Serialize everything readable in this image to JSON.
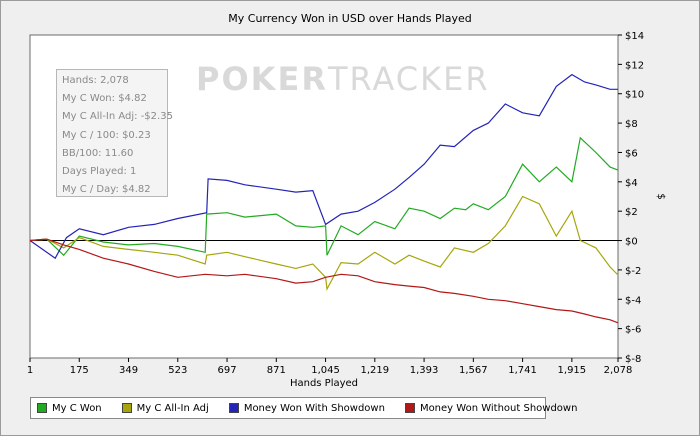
{
  "chart_data": {
    "type": "line",
    "title": "My Currency Won in USD over Hands Played",
    "xlabel": "Hands Played",
    "ylabel": "$",
    "x_ticks": [
      "1",
      "175",
      "349",
      "523",
      "697",
      "871",
      "1,045",
      "1,219",
      "1,393",
      "1,567",
      "1,741",
      "1,915",
      "2,078"
    ],
    "y_ticks": [
      "$14",
      "$12",
      "$10",
      "$8",
      "$6",
      "$4",
      "$2",
      "$0",
      "$-2",
      "$-4",
      "$-6",
      "$-8"
    ],
    "xlim": [
      1,
      2078
    ],
    "ylim": [
      -8,
      14
    ],
    "grid": false,
    "legend_position": "bottom",
    "series": [
      {
        "name": "My C Won",
        "color": "#22aa22",
        "points": [
          [
            1,
            0
          ],
          [
            60,
            0.1
          ],
          [
            120,
            -1
          ],
          [
            175,
            0.3
          ],
          [
            260,
            -0.1
          ],
          [
            349,
            -0.3
          ],
          [
            440,
            -0.2
          ],
          [
            523,
            -0.4
          ],
          [
            620,
            -0.8
          ],
          [
            625,
            1.8
          ],
          [
            697,
            1.9
          ],
          [
            760,
            1.6
          ],
          [
            871,
            1.8
          ],
          [
            940,
            1.0
          ],
          [
            1000,
            0.9
          ],
          [
            1045,
            1.0
          ],
          [
            1050,
            -1.0
          ],
          [
            1100,
            1.0
          ],
          [
            1160,
            0.4
          ],
          [
            1219,
            1.3
          ],
          [
            1290,
            0.8
          ],
          [
            1340,
            2.2
          ],
          [
            1393,
            2.0
          ],
          [
            1450,
            1.5
          ],
          [
            1500,
            2.2
          ],
          [
            1540,
            2.1
          ],
          [
            1567,
            2.5
          ],
          [
            1620,
            2.1
          ],
          [
            1680,
            3.0
          ],
          [
            1741,
            5.2
          ],
          [
            1800,
            4.0
          ],
          [
            1860,
            5.0
          ],
          [
            1915,
            4.0
          ],
          [
            1945,
            7.0
          ],
          [
            2000,
            6.0
          ],
          [
            2050,
            5.0
          ],
          [
            2078,
            4.8
          ]
        ]
      },
      {
        "name": "My C All-In Adj",
        "color": "#a6a60c",
        "points": [
          [
            1,
            0
          ],
          [
            60,
            0.1
          ],
          [
            120,
            -0.5
          ],
          [
            175,
            0.2
          ],
          [
            260,
            -0.4
          ],
          [
            349,
            -0.6
          ],
          [
            440,
            -0.8
          ],
          [
            523,
            -1.0
          ],
          [
            620,
            -1.6
          ],
          [
            625,
            -1.0
          ],
          [
            697,
            -0.8
          ],
          [
            760,
            -1.1
          ],
          [
            871,
            -1.6
          ],
          [
            940,
            -1.9
          ],
          [
            1000,
            -1.6
          ],
          [
            1045,
            -2.5
          ],
          [
            1050,
            -3.3
          ],
          [
            1100,
            -1.5
          ],
          [
            1160,
            -1.6
          ],
          [
            1219,
            -0.8
          ],
          [
            1290,
            -1.6
          ],
          [
            1340,
            -1.0
          ],
          [
            1393,
            -1.4
          ],
          [
            1450,
            -1.8
          ],
          [
            1500,
            -0.5
          ],
          [
            1567,
            -0.8
          ],
          [
            1620,
            -0.2
          ],
          [
            1680,
            1.0
          ],
          [
            1741,
            3.0
          ],
          [
            1800,
            2.5
          ],
          [
            1860,
            0.3
          ],
          [
            1915,
            2.0
          ],
          [
            1945,
            0.0
          ],
          [
            2000,
            -0.5
          ],
          [
            2050,
            -1.8
          ],
          [
            2078,
            -2.35
          ]
        ]
      },
      {
        "name": "Money Won With Showdown",
        "color": "#2424b8",
        "points": [
          [
            1,
            0
          ],
          [
            90,
            -1.2
          ],
          [
            130,
            0.2
          ],
          [
            175,
            0.8
          ],
          [
            260,
            0.4
          ],
          [
            349,
            0.9
          ],
          [
            440,
            1.1
          ],
          [
            523,
            1.5
          ],
          [
            625,
            1.9
          ],
          [
            630,
            4.2
          ],
          [
            697,
            4.1
          ],
          [
            760,
            3.8
          ],
          [
            871,
            3.5
          ],
          [
            940,
            3.3
          ],
          [
            1000,
            3.4
          ],
          [
            1045,
            1.1
          ],
          [
            1100,
            1.8
          ],
          [
            1160,
            2.0
          ],
          [
            1219,
            2.6
          ],
          [
            1290,
            3.5
          ],
          [
            1340,
            4.3
          ],
          [
            1393,
            5.2
          ],
          [
            1450,
            6.5
          ],
          [
            1500,
            6.4
          ],
          [
            1567,
            7.5
          ],
          [
            1620,
            8.0
          ],
          [
            1680,
            9.3
          ],
          [
            1741,
            8.7
          ],
          [
            1800,
            8.5
          ],
          [
            1860,
            10.5
          ],
          [
            1915,
            11.3
          ],
          [
            1960,
            10.8
          ],
          [
            2000,
            10.6
          ],
          [
            2050,
            10.3
          ],
          [
            2078,
            10.3
          ]
        ]
      },
      {
        "name": "Money Won Without Showdown",
        "color": "#b31818",
        "points": [
          [
            1,
            0
          ],
          [
            60,
            0.1
          ],
          [
            120,
            -0.3
          ],
          [
            175,
            -0.6
          ],
          [
            260,
            -1.2
          ],
          [
            349,
            -1.6
          ],
          [
            440,
            -2.1
          ],
          [
            523,
            -2.5
          ],
          [
            620,
            -2.3
          ],
          [
            697,
            -2.4
          ],
          [
            760,
            -2.3
          ],
          [
            871,
            -2.6
          ],
          [
            940,
            -2.9
          ],
          [
            1000,
            -2.8
          ],
          [
            1045,
            -2.5
          ],
          [
            1100,
            -2.3
          ],
          [
            1160,
            -2.4
          ],
          [
            1219,
            -2.8
          ],
          [
            1290,
            -3.0
          ],
          [
            1340,
            -3.1
          ],
          [
            1393,
            -3.2
          ],
          [
            1450,
            -3.5
          ],
          [
            1500,
            -3.6
          ],
          [
            1567,
            -3.8
          ],
          [
            1620,
            -4.0
          ],
          [
            1680,
            -4.1
          ],
          [
            1741,
            -4.3
          ],
          [
            1800,
            -4.5
          ],
          [
            1860,
            -4.7
          ],
          [
            1915,
            -4.8
          ],
          [
            1960,
            -5.0
          ],
          [
            2000,
            -5.2
          ],
          [
            2050,
            -5.4
          ],
          [
            2078,
            -5.6
          ]
        ]
      }
    ]
  },
  "info_box": {
    "lines": [
      "Hands: 2,078",
      "My C Won: $4.82",
      "My C All-In Adj: -$2.35",
      "My C / 100: $0.23",
      "BB/100: 11.60",
      "Days Played: 1",
      "My C / Day: $4.82"
    ]
  },
  "watermark": {
    "brand_a": "POKER",
    "brand_b": "TRACKER"
  }
}
